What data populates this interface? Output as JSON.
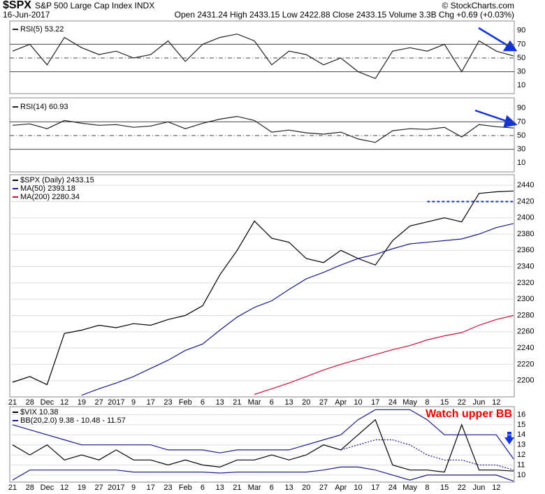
{
  "header": {
    "symbol": "$SPX",
    "name": "S&P 500 Large Cap Index INDX",
    "date": "16-Jun-2017",
    "quote": "Open 2431.24 High 2433.15 Low 2422.88 Close 2433.15 Volume 3.3B Chg +0.69 (+0.03%)",
    "credit": "© StockCharts.com"
  },
  "chart_data": [
    {
      "type": "line",
      "ylim": [
        0,
        100
      ],
      "yticks": [
        10,
        30,
        50,
        70,
        90
      ],
      "levels": [
        {
          "value": 30,
          "style": "solid"
        },
        {
          "value": 50,
          "style": "dashdot"
        },
        {
          "value": 70,
          "style": "solid"
        }
      ],
      "series": [
        {
          "name": "RSI(5) 53.22",
          "color": "#222222",
          "values": [
            60,
            70,
            40,
            80,
            65,
            55,
            60,
            50,
            55,
            75,
            45,
            70,
            80,
            85,
            75,
            40,
            60,
            55,
            40,
            50,
            30,
            20,
            60,
            65,
            60,
            70,
            30,
            75,
            60,
            53
          ]
        }
      ]
    },
    {
      "type": "line",
      "ylim": [
        0,
        100
      ],
      "yticks": [
        10,
        30,
        50,
        70,
        90
      ],
      "levels": [
        {
          "value": 30,
          "style": "solid"
        },
        {
          "value": 50,
          "style": "dashdot"
        },
        {
          "value": 70,
          "style": "solid"
        }
      ],
      "series": [
        {
          "name": "RSI(14) 60.93",
          "color": "#222222",
          "values": [
            65,
            67,
            60,
            72,
            68,
            65,
            66,
            62,
            64,
            70,
            60,
            68,
            74,
            78,
            72,
            55,
            58,
            54,
            52,
            55,
            45,
            40,
            57,
            60,
            59,
            62,
            48,
            66,
            63,
            61
          ]
        }
      ]
    },
    {
      "type": "line",
      "ylim": [
        2180,
        2453
      ],
      "yticks": [
        2200,
        2220,
        2240,
        2260,
        2280,
        2300,
        2320,
        2340,
        2360,
        2380,
        2400,
        2420,
        2440
      ],
      "grid": true,
      "categories": [
        "21",
        "28",
        "Dec",
        "12",
        "19",
        "27",
        "2017",
        "9",
        "17",
        "23",
        "Feb",
        "6",
        "13",
        "21",
        "Mar",
        "6",
        "13",
        "20",
        "27",
        "Apr",
        "10",
        "17",
        "24",
        "May",
        "8",
        "15",
        "22",
        "Jun",
        "12",
        null
      ],
      "levels": [
        {
          "value": 2420,
          "style": "dashed",
          "color": "#1133cc",
          "from": 24
        }
      ],
      "series": [
        {
          "name": "$SPX (Daily) 2433.15",
          "color": "#000000",
          "values": [
            2198,
            2205,
            2195,
            2258,
            2262,
            2268,
            2265,
            2270,
            2268,
            2275,
            2280,
            2292,
            2330,
            2360,
            2396,
            2375,
            2370,
            2350,
            2345,
            2360,
            2350,
            2342,
            2372,
            2390,
            2395,
            2400,
            2395,
            2430,
            2432,
            2433
          ]
        },
        {
          "name": "MA(50) 2393.18",
          "color": "#1a1a8c",
          "values": [
            null,
            null,
            null,
            null,
            2182,
            2190,
            2197,
            2205,
            2215,
            2225,
            2237,
            2245,
            2262,
            2278,
            2290,
            2298,
            2312,
            2325,
            2333,
            2342,
            2350,
            2355,
            2362,
            2368,
            2370,
            2372,
            2374,
            2380,
            2388,
            2393
          ]
        },
        {
          "name": "MA(200) 2280.34",
          "color": "#cc1133",
          "values": [
            null,
            null,
            null,
            null,
            null,
            null,
            null,
            null,
            null,
            null,
            null,
            null,
            null,
            null,
            2183,
            2190,
            2197,
            2205,
            2213,
            2220,
            2226,
            2232,
            2238,
            2243,
            2250,
            2255,
            2259,
            2268,
            2275,
            2280
          ]
        }
      ]
    },
    {
      "type": "line",
      "ylim": [
        9.3,
        16.8
      ],
      "yticks": [
        10,
        11,
        12,
        13,
        14,
        15,
        16
      ],
      "grid": true,
      "categories": [
        "21",
        "28",
        "Dec",
        "12",
        "19",
        "27",
        "2017",
        "9",
        "17",
        "23",
        "Feb",
        "6",
        "13",
        "21",
        "Mar",
        "6",
        "13",
        "20",
        "27",
        "Apr",
        "10",
        "17",
        "24",
        "May",
        "8",
        "15",
        "22",
        "Jun",
        "12",
        null
      ],
      "annotation": "Watch upper BB",
      "series": [
        {
          "name": "$VIX 10.38",
          "color": "#000000",
          "values": [
            13,
            12,
            13,
            11.5,
            12,
            11.5,
            12.5,
            11.5,
            11.5,
            11,
            11.5,
            11,
            10.8,
            11.5,
            11.5,
            12,
            11.5,
            12,
            13,
            12.5,
            14,
            15.5,
            11,
            10.5,
            10.5,
            10.3,
            15,
            10.5,
            10.5,
            10.4
          ]
        },
        {
          "name": "BB(20,2.0) 9.38 - 10.48 - 11.57",
          "color": "#1a1a8c",
          "values": [
            15,
            14.5,
            14,
            13.5,
            13,
            13,
            13,
            13,
            13,
            12.5,
            12.5,
            12.5,
            12.2,
            12.5,
            12.5,
            12.5,
            12.5,
            13,
            13.5,
            14,
            15.5,
            16.5,
            16.5,
            16.5,
            15.5,
            14,
            14,
            14,
            14,
            11.6
          ]
        },
        {
          "color": "#1a1a8c",
          "style": "dotted",
          "values": [
            null,
            null,
            null,
            null,
            null,
            null,
            null,
            null,
            null,
            null,
            null,
            null,
            null,
            null,
            null,
            null,
            null,
            null,
            null,
            12.5,
            13,
            13.5,
            13.5,
            13,
            12,
            11.5,
            11.5,
            11,
            11,
            10.5
          ]
        },
        {
          "color": "#1a1a8c",
          "values": [
            9.5,
            10.5,
            10.5,
            10.5,
            10.5,
            10.5,
            10.5,
            10.3,
            10.3,
            10.3,
            10.3,
            10.3,
            10.2,
            10.3,
            10.3,
            10.3,
            10.3,
            10.3,
            10.5,
            10.8,
            10.8,
            10.5,
            10,
            9.5,
            10,
            10,
            10,
            10,
            10,
            9.4
          ]
        }
      ]
    }
  ]
}
